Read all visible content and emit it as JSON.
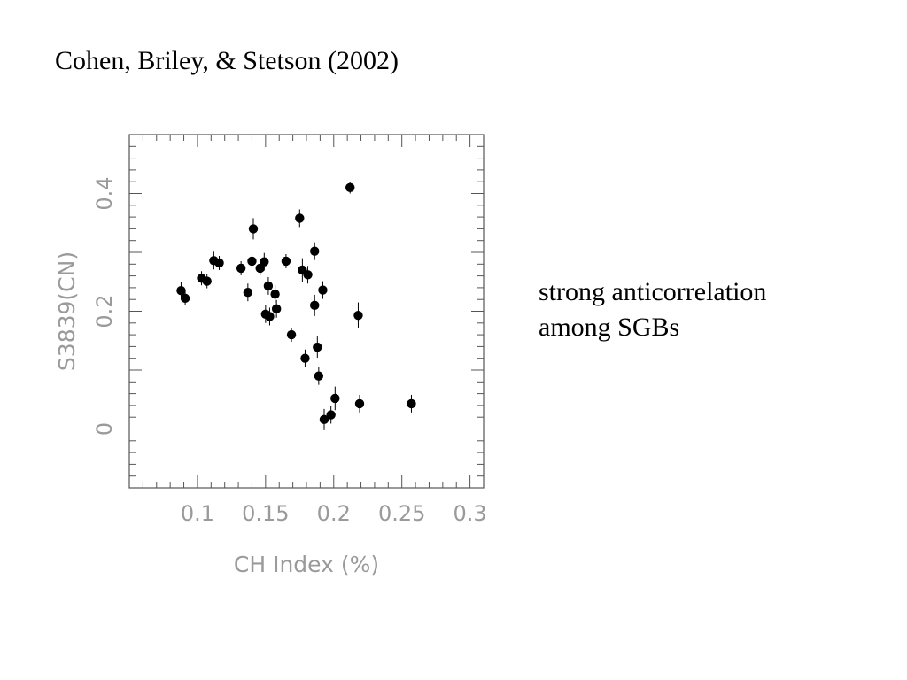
{
  "slide": {
    "title": "Cohen, Briley, & Stetson (2002)",
    "annotation": [
      "strong anticorrelation",
      "among SGBs"
    ]
  },
  "colors": {
    "axis": "#555555",
    "label": "#9a9a9a",
    "point": "#000000"
  },
  "chart_data": {
    "type": "scatter",
    "xlabel": "CH Index (%)",
    "ylabel": "S3839(CN)",
    "xlim": [
      0.05,
      0.31
    ],
    "ylim": [
      -0.1,
      0.5
    ],
    "xticks": [
      0.1,
      0.15,
      0.2,
      0.25,
      0.3
    ],
    "xtick_labels": [
      "0.1",
      "0.15",
      "0.2",
      "0.25",
      "0.3"
    ],
    "yticks": [
      0,
      0.2,
      0.4
    ],
    "ytick_labels": [
      "0",
      "0.2",
      "0.4"
    ],
    "grid": false,
    "error_bars": "vertical",
    "points": [
      {
        "x": 0.088,
        "y": 0.235,
        "err": 0.015
      },
      {
        "x": 0.091,
        "y": 0.222,
        "err": 0.012
      },
      {
        "x": 0.103,
        "y": 0.256,
        "err": 0.012
      },
      {
        "x": 0.107,
        "y": 0.251,
        "err": 0.012
      },
      {
        "x": 0.112,
        "y": 0.286,
        "err": 0.015
      },
      {
        "x": 0.116,
        "y": 0.282,
        "err": 0.012
      },
      {
        "x": 0.132,
        "y": 0.273,
        "err": 0.012
      },
      {
        "x": 0.137,
        "y": 0.232,
        "err": 0.015
      },
      {
        "x": 0.14,
        "y": 0.285,
        "err": 0.012
      },
      {
        "x": 0.141,
        "y": 0.34,
        "err": 0.018
      },
      {
        "x": 0.146,
        "y": 0.273,
        "err": 0.012
      },
      {
        "x": 0.149,
        "y": 0.284,
        "err": 0.015
      },
      {
        "x": 0.15,
        "y": 0.195,
        "err": 0.015
      },
      {
        "x": 0.152,
        "y": 0.243,
        "err": 0.015
      },
      {
        "x": 0.153,
        "y": 0.191,
        "err": 0.015
      },
      {
        "x": 0.157,
        "y": 0.229,
        "err": 0.015
      },
      {
        "x": 0.158,
        "y": 0.204,
        "err": 0.015
      },
      {
        "x": 0.165,
        "y": 0.285,
        "err": 0.012
      },
      {
        "x": 0.169,
        "y": 0.16,
        "err": 0.012
      },
      {
        "x": 0.175,
        "y": 0.358,
        "err": 0.015
      },
      {
        "x": 0.177,
        "y": 0.27,
        "err": 0.02
      },
      {
        "x": 0.179,
        "y": 0.12,
        "err": 0.015
      },
      {
        "x": 0.181,
        "y": 0.262,
        "err": 0.015
      },
      {
        "x": 0.186,
        "y": 0.302,
        "err": 0.015
      },
      {
        "x": 0.186,
        "y": 0.21,
        "err": 0.018
      },
      {
        "x": 0.188,
        "y": 0.139,
        "err": 0.018
      },
      {
        "x": 0.189,
        "y": 0.09,
        "err": 0.015
      },
      {
        "x": 0.192,
        "y": 0.236,
        "err": 0.015
      },
      {
        "x": 0.193,
        "y": 0.016,
        "err": 0.018
      },
      {
        "x": 0.198,
        "y": 0.024,
        "err": 0.015
      },
      {
        "x": 0.201,
        "y": 0.052,
        "err": 0.02
      },
      {
        "x": 0.212,
        "y": 0.41,
        "err": 0.01
      },
      {
        "x": 0.218,
        "y": 0.193,
        "err": 0.022
      },
      {
        "x": 0.219,
        "y": 0.043,
        "err": 0.015
      },
      {
        "x": 0.257,
        "y": 0.043,
        "err": 0.015
      }
    ]
  }
}
